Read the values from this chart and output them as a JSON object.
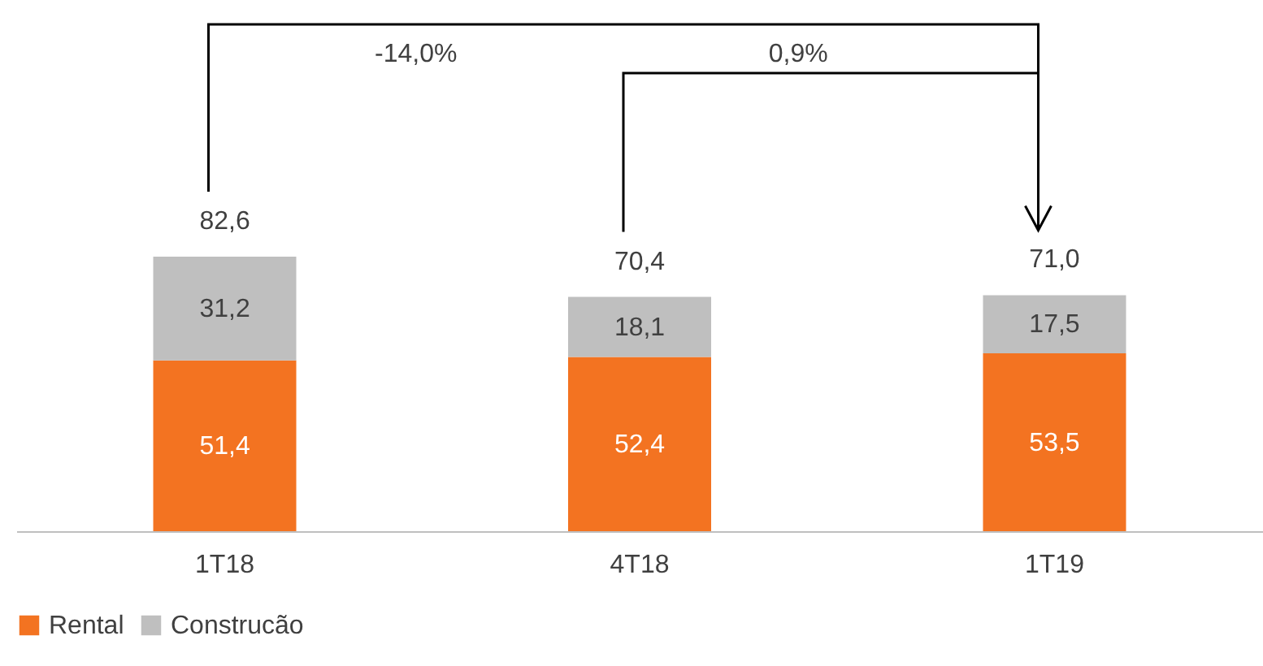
{
  "chart_data": {
    "type": "bar",
    "stacked": true,
    "categories": [
      "1T18",
      "4T18",
      "1T19"
    ],
    "series": [
      {
        "name": "Rental",
        "color": "#f37321",
        "values": [
          51.4,
          52.4,
          53.5
        ],
        "value_labels": [
          "51,4",
          "52,4",
          "53,5"
        ]
      },
      {
        "name": "Construcão",
        "color": "#bfbfbf",
        "values": [
          31.2,
          18.1,
          17.5
        ],
        "value_labels": [
          "31,2",
          "18,1",
          "17,5"
        ]
      }
    ],
    "totals": [
      "82,6",
      "70,4",
      "71,0"
    ],
    "annotations": [
      "-14,0%",
      "0,9%"
    ],
    "legend": "bottom",
    "grid": false
  }
}
